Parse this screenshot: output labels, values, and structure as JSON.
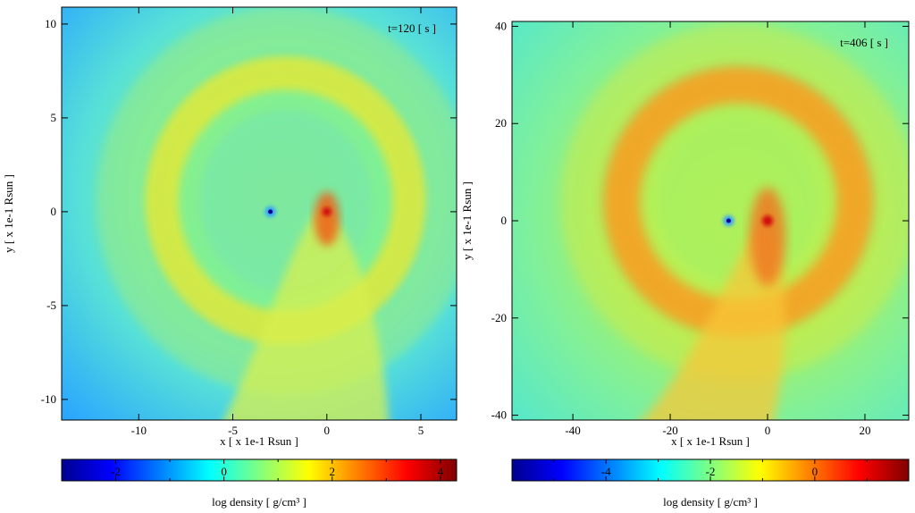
{
  "colors": {
    "cmap": [
      "#00008f",
      "#0000ff",
      "#0080ff",
      "#00ffff",
      "#80ff80",
      "#ffff00",
      "#ff8000",
      "#ff0000",
      "#800000"
    ],
    "frame": "#000000",
    "background_left": "#40c0ff",
    "background_right": "#70f0a0"
  },
  "chart_data": [
    {
      "type": "heatmap",
      "time_label": "t=120 [ s ]",
      "xlabel": "x [ x 1e-1 Rsun ]",
      "ylabel": "y [ x 1e-1 Rsun ]",
      "xlim": [
        -14.1,
        6.9
      ],
      "ylim": [
        -11.1,
        10.9
      ],
      "xticks": [
        -10,
        -5,
        0,
        5
      ],
      "xtick_labels": [
        "-10",
        "-5",
        "0",
        "5"
      ],
      "yticks": [
        -10,
        -5,
        0,
        5,
        10
      ],
      "ytick_labels": [
        "-10",
        "-5",
        "0",
        "5",
        "10"
      ],
      "features": {
        "compact_object": {
          "x": -3.0,
          "y": 0.0
        },
        "ring": {
          "cx": -2.2,
          "cy": 0.6,
          "rx": 6.6,
          "ry": 6.8
        },
        "stream_origin": {
          "x": 0.0,
          "y": 0.0
        }
      },
      "colorbar": {
        "label": "log density [ g/cm³ ]",
        "range": [
          -3.0,
          4.3
        ],
        "ticks": [
          -2,
          0,
          2,
          4
        ],
        "tick_labels": [
          "-2",
          "0",
          "2",
          "4"
        ]
      }
    },
    {
      "type": "heatmap",
      "time_label": "t=406 [ s ]",
      "xlabel": "x [ x 1e-1 Rsun ]",
      "ylabel": "y [ x 1e-1 Rsun ]",
      "xlim": [
        -52.5,
        29
      ],
      "ylim": [
        -41,
        41
      ],
      "xticks": [
        -40,
        -20,
        0,
        20
      ],
      "xtick_labels": [
        "-40",
        "-20",
        "0",
        "20"
      ],
      "yticks": [
        -40,
        -20,
        0,
        20,
        40
      ],
      "ytick_labels": [
        "-40",
        "-20",
        "0",
        "20",
        "40"
      ],
      "features": {
        "compact_object": {
          "x": -8.0,
          "y": 0.0
        },
        "ring": {
          "cx": -6.0,
          "cy": 4.0,
          "rx": 24.0,
          "ry": 24.0
        },
        "stream_origin": {
          "x": 0.0,
          "y": 0.0
        }
      },
      "colorbar": {
        "label": "log density [ g/cm³ ]",
        "range": [
          -5.8,
          1.8
        ],
        "ticks": [
          -4,
          -2,
          0
        ],
        "tick_labels": [
          "-4",
          "-2",
          "0"
        ]
      }
    }
  ]
}
